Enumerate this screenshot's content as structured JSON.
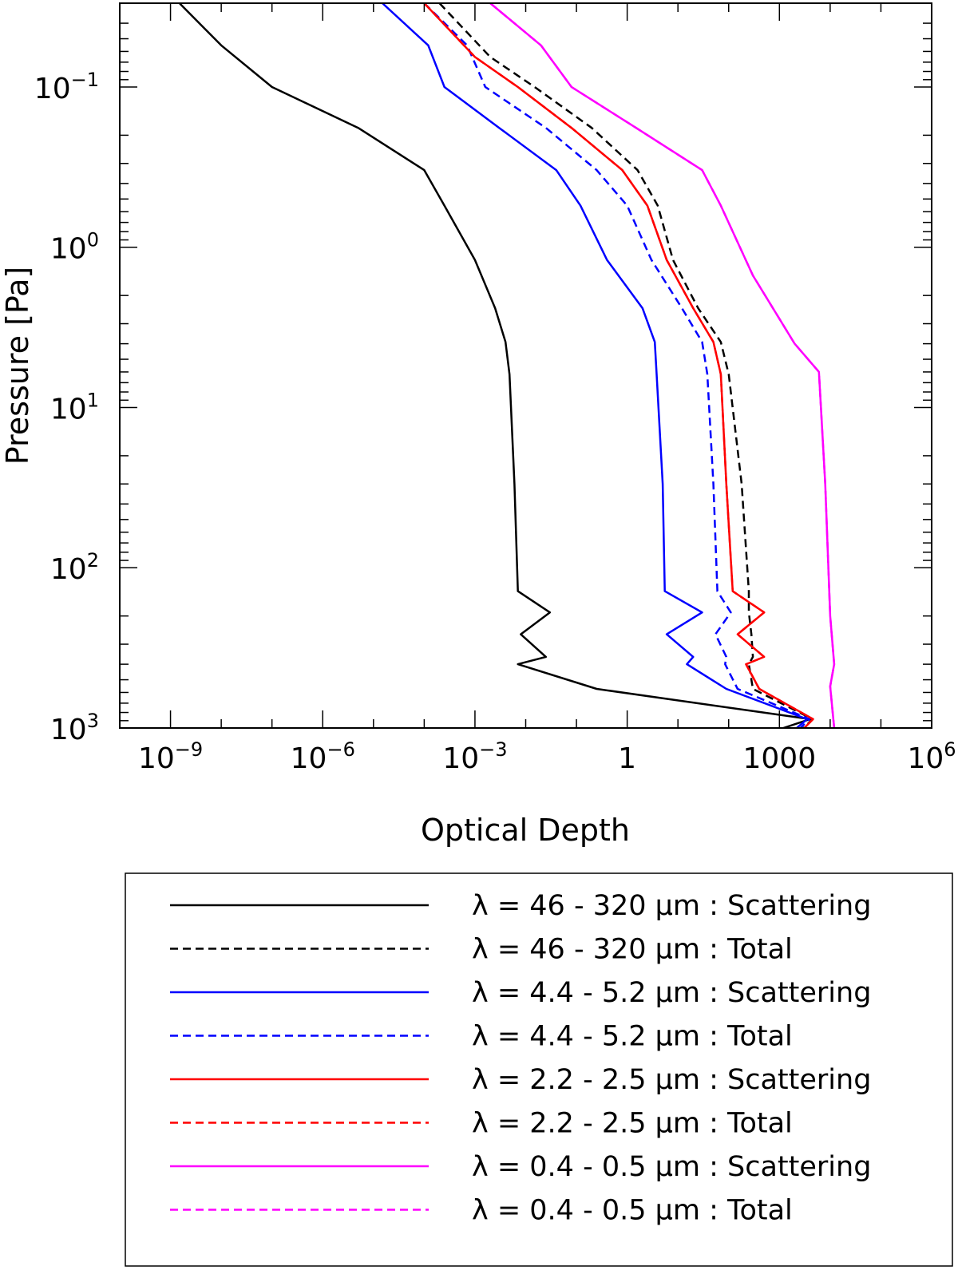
{
  "chart_data": {
    "type": "line",
    "xlabel": "Optical Depth",
    "ylabel": "Pressure [Pa]",
    "xscale": "log",
    "yscale": "log",
    "yinverted": true,
    "xlim": [
      1e-10,
      1000000.0
    ],
    "ylim": [
      1000,
      0.03
    ],
    "x_ticks": [
      {
        "value": 1e-09,
        "base": "10",
        "exp": "−9"
      },
      {
        "value": 1e-06,
        "base": "10",
        "exp": "−6"
      },
      {
        "value": 0.001,
        "base": "10",
        "exp": "−3"
      },
      {
        "value": 1,
        "base": "1",
        "exp": ""
      },
      {
        "value": 1000,
        "base": "1000",
        "exp": ""
      },
      {
        "value": 1000000.0,
        "base": "10",
        "exp": "6"
      }
    ],
    "y_ticks": [
      {
        "value": 0.1,
        "base": "10",
        "exp": "−1"
      },
      {
        "value": 1,
        "base": "10",
        "exp": "0"
      },
      {
        "value": 10,
        "base": "10",
        "exp": "1"
      },
      {
        "value": 100,
        "base": "10",
        "exp": "2"
      },
      {
        "value": 1000,
        "base": "10",
        "exp": "3"
      }
    ],
    "legend_position": "below plot",
    "series": [
      {
        "name": "λ = 46 - 320 μm : Scattering",
        "color": "#000000",
        "dash": "solid",
        "points": [
          [
            1.5e-09,
            0.03
          ],
          [
            1e-08,
            0.055
          ],
          [
            1e-07,
            0.1
          ],
          [
            5e-06,
            0.18
          ],
          [
            0.0001,
            0.33
          ],
          [
            0.00025,
            0.55
          ],
          [
            0.001,
            1.2
          ],
          [
            0.0025,
            2.4
          ],
          [
            0.004,
            3.9
          ],
          [
            0.0048,
            6.2
          ],
          [
            0.006,
            30
          ],
          [
            0.007,
            140
          ],
          [
            0.03,
            190
          ],
          [
            0.008,
            260
          ],
          [
            0.025,
            360
          ],
          [
            0.007,
            400
          ],
          [
            0.25,
            570
          ],
          [
            4000,
            880
          ],
          [
            1200,
            1000
          ]
        ]
      },
      {
        "name": "λ = 46 - 320 μm : Total",
        "color": "#000000",
        "dash": "dashed",
        "points": [
          [
            0.0002,
            0.03
          ],
          [
            0.002,
            0.065
          ],
          [
            0.015,
            0.1
          ],
          [
            0.2,
            0.18
          ],
          [
            1.6,
            0.33
          ],
          [
            4,
            0.55
          ],
          [
            8,
            1.2
          ],
          [
            25,
            2.4
          ],
          [
            70,
            3.9
          ],
          [
            100,
            6.2
          ],
          [
            180,
            30
          ],
          [
            250,
            140
          ],
          [
            250,
            190
          ],
          [
            280,
            260
          ],
          [
            300,
            360
          ],
          [
            250,
            400
          ],
          [
            300,
            570
          ],
          [
            4500,
            880
          ],
          [
            3000,
            1000
          ]
        ]
      },
      {
        "name": "λ = 4.4 - 5.2 μm : Scattering",
        "color": "#0000ff",
        "dash": "solid",
        "points": [
          [
            1.5e-05,
            0.03
          ],
          [
            0.00012,
            0.055
          ],
          [
            0.00025,
            0.1
          ],
          [
            0.003,
            0.18
          ],
          [
            0.04,
            0.33
          ],
          [
            0.12,
            0.55
          ],
          [
            0.4,
            1.2
          ],
          [
            2,
            2.4
          ],
          [
            3.5,
            3.9
          ],
          [
            3.8,
            6.2
          ],
          [
            5,
            30
          ],
          [
            5.5,
            140
          ],
          [
            30,
            190
          ],
          [
            6,
            260
          ],
          [
            20,
            360
          ],
          [
            15,
            400
          ],
          [
            90,
            570
          ],
          [
            3500,
            880
          ],
          [
            2200,
            1000
          ]
        ]
      },
      {
        "name": "λ = 4.4 - 5.2 μm : Total",
        "color": "#0000ff",
        "dash": "dashed",
        "points": [
          [
            0.0001,
            0.03
          ],
          [
            0.0007,
            0.055
          ],
          [
            0.0016,
            0.1
          ],
          [
            0.025,
            0.18
          ],
          [
            0.25,
            0.33
          ],
          [
            1,
            0.55
          ],
          [
            3,
            1.2
          ],
          [
            12,
            2.4
          ],
          [
            30,
            3.9
          ],
          [
            38,
            6.2
          ],
          [
            50,
            30
          ],
          [
            60,
            140
          ],
          [
            110,
            190
          ],
          [
            55,
            260
          ],
          [
            90,
            360
          ],
          [
            85,
            400
          ],
          [
            150,
            570
          ],
          [
            3900,
            880
          ],
          [
            2600,
            1000
          ]
        ]
      },
      {
        "name": "λ = 2.2 - 2.5 μm : Scattering",
        "color": "#ff0000",
        "dash": "solid",
        "points": [
          [
            0.0001,
            0.03
          ],
          [
            0.001,
            0.065
          ],
          [
            0.007,
            0.1
          ],
          [
            0.08,
            0.18
          ],
          [
            0.8,
            0.33
          ],
          [
            2.5,
            0.55
          ],
          [
            6,
            1.2
          ],
          [
            20,
            2.4
          ],
          [
            50,
            3.9
          ],
          [
            70,
            6.2
          ],
          [
            90,
            30
          ],
          [
            120,
            140
          ],
          [
            500,
            190
          ],
          [
            150,
            260
          ],
          [
            500,
            360
          ],
          [
            220,
            400
          ],
          [
            400,
            570
          ],
          [
            4600,
            880
          ],
          [
            3100,
            1000
          ]
        ]
      },
      {
        "name": "λ = 2.2 - 2.5 μm : Total",
        "color": "#ff0000",
        "dash": "dashed",
        "points": [
          [
            0.0001,
            0.03
          ],
          [
            0.001,
            0.065
          ],
          [
            0.007,
            0.1
          ],
          [
            0.08,
            0.18
          ],
          [
            0.8,
            0.33
          ],
          [
            2.5,
            0.55
          ],
          [
            6,
            1.2
          ],
          [
            20,
            2.4
          ],
          [
            50,
            3.9
          ],
          [
            70,
            6.2
          ],
          [
            90,
            30
          ],
          [
            120,
            140
          ],
          [
            500,
            190
          ],
          [
            150,
            260
          ],
          [
            500,
            360
          ],
          [
            220,
            400
          ],
          [
            400,
            570
          ],
          [
            4600,
            880
          ],
          [
            3100,
            1000
          ]
        ]
      },
      {
        "name": "λ = 0.4 - 0.5 μm : Scattering",
        "color": "#ff00ff",
        "dash": "solid",
        "points": [
          [
            0.002,
            0.03
          ],
          [
            0.02,
            0.055
          ],
          [
            0.08,
            0.1
          ],
          [
            1.5,
            0.18
          ],
          [
            30,
            0.33
          ],
          [
            70,
            0.55
          ],
          [
            300,
            1.5
          ],
          [
            2000,
            4
          ],
          [
            6000,
            6
          ],
          [
            8000,
            30
          ],
          [
            10000,
            200
          ],
          [
            12000,
            400
          ],
          [
            10000,
            550
          ],
          [
            12000,
            1000
          ]
        ]
      },
      {
        "name": "λ = 0.4 - 0.5 μm : Total",
        "color": "#ff00ff",
        "dash": "dashed",
        "points": [
          [
            0.002,
            0.03
          ],
          [
            0.02,
            0.055
          ],
          [
            0.08,
            0.1
          ],
          [
            1.5,
            0.18
          ],
          [
            30,
            0.33
          ],
          [
            70,
            0.55
          ],
          [
            300,
            1.5
          ],
          [
            2000,
            4
          ],
          [
            6000,
            6
          ],
          [
            8000,
            30
          ],
          [
            10000,
            200
          ],
          [
            12000,
            400
          ],
          [
            10000,
            550
          ],
          [
            12000,
            1000
          ]
        ]
      }
    ]
  }
}
